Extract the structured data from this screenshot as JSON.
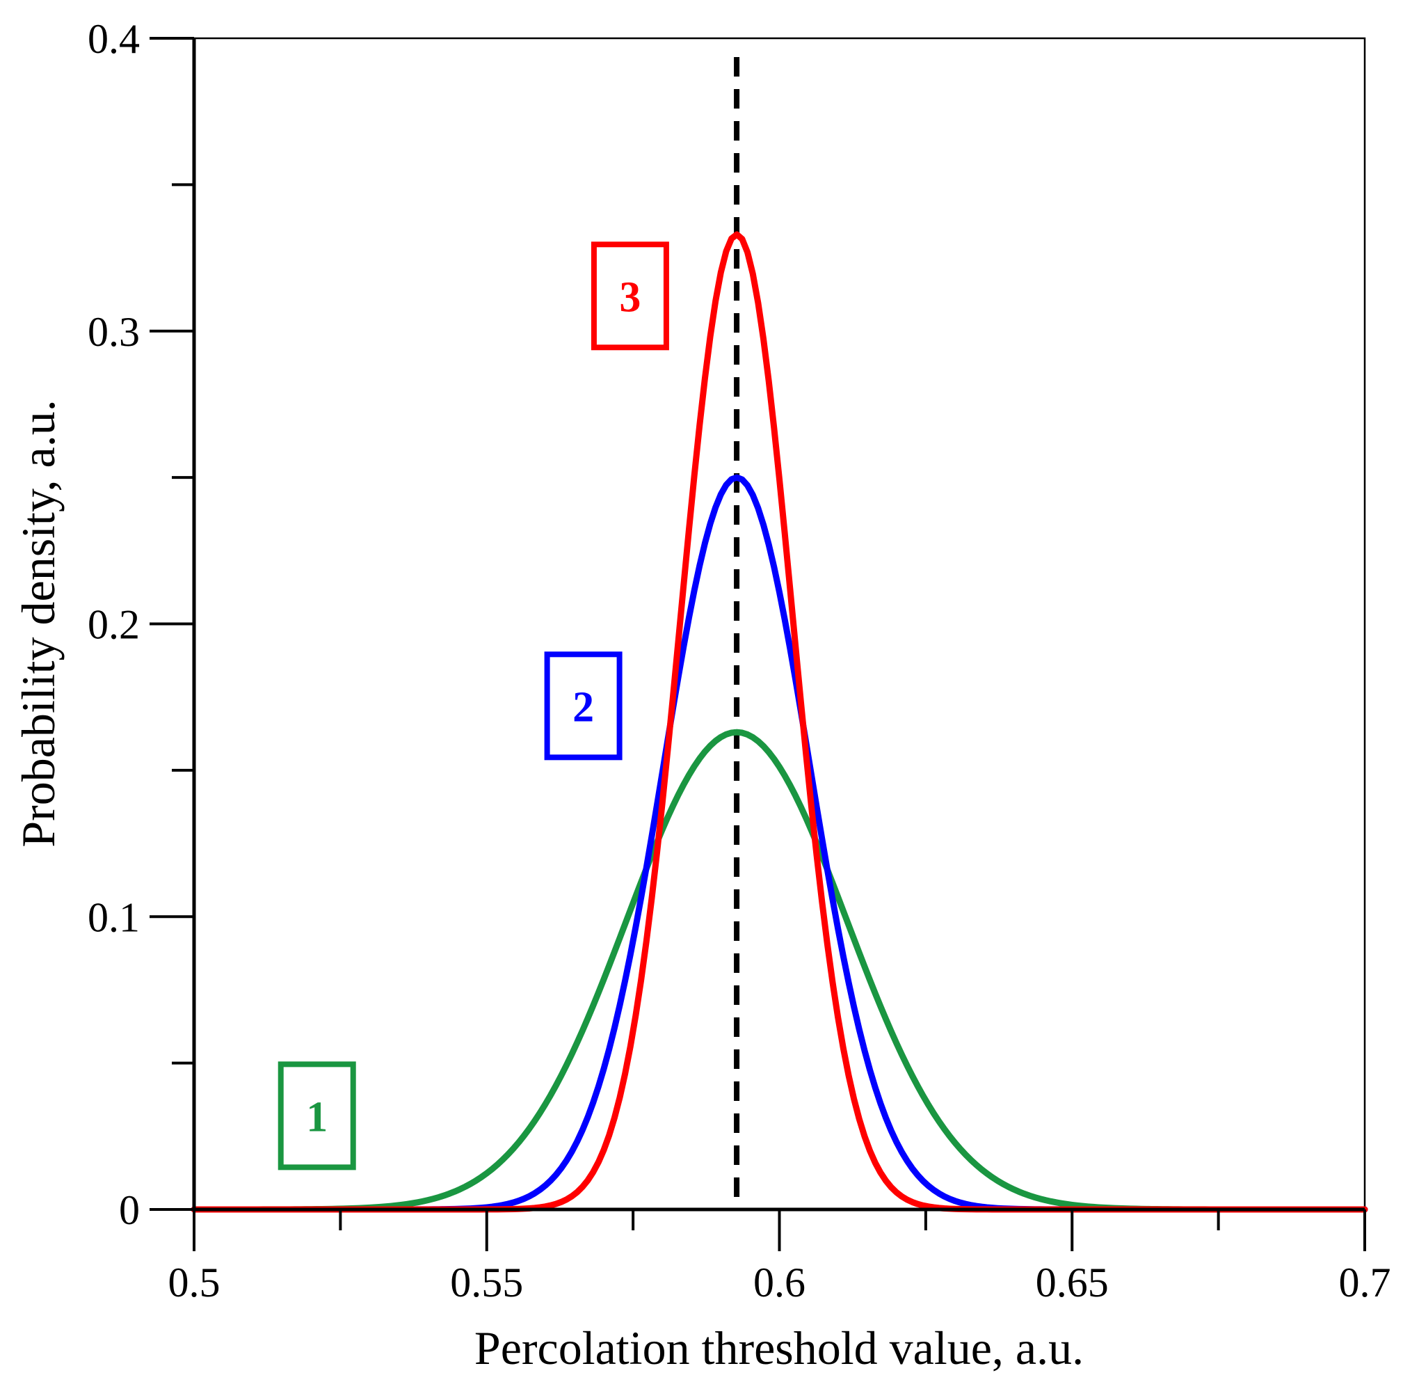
{
  "chart_data": {
    "type": "line",
    "title": "",
    "xlabel": "Percolation threshold value, a.u.",
    "ylabel": "Probability density, a.u.",
    "xlim": [
      0.5,
      0.7
    ],
    "ylim": [
      0,
      0.4
    ],
    "x_ticks": [
      0.5,
      0.55,
      0.6,
      0.65,
      0.7
    ],
    "x_tick_labels": [
      "0.5",
      "0.55",
      "0.6",
      "0.65",
      "0.7"
    ],
    "x_minor_step": 0.025,
    "y_ticks": [
      0,
      0.1,
      0.2,
      0.3,
      0.4
    ],
    "y_tick_labels": [
      "0",
      "0.1",
      "0.2",
      "0.3",
      "0.4"
    ],
    "y_minor_step": 0.05,
    "grid": false,
    "reference_line": {
      "type": "vertical",
      "x": 0.5927,
      "style": "dashed",
      "color": "#000000"
    },
    "series": [
      {
        "name": "1",
        "distribution": "gaussian",
        "mean": 0.5927,
        "peak": 0.163,
        "sigma": 0.0188,
        "color": "#1a9641",
        "label": "1",
        "label_anchor": {
          "x": 0.521,
          "y": 0.032
        }
      },
      {
        "name": "2",
        "distribution": "gaussian",
        "mean": 0.5927,
        "peak": 0.25,
        "sigma": 0.0125,
        "color": "#0000ff",
        "label": "2",
        "label_anchor": {
          "x": 0.5665,
          "y": 0.172
        }
      },
      {
        "name": "3",
        "distribution": "gaussian",
        "mean": 0.5927,
        "peak": 0.333,
        "sigma": 0.0096,
        "color": "#ff0000",
        "label": "3",
        "label_anchor": {
          "x": 0.5745,
          "y": 0.312
        }
      }
    ]
  }
}
